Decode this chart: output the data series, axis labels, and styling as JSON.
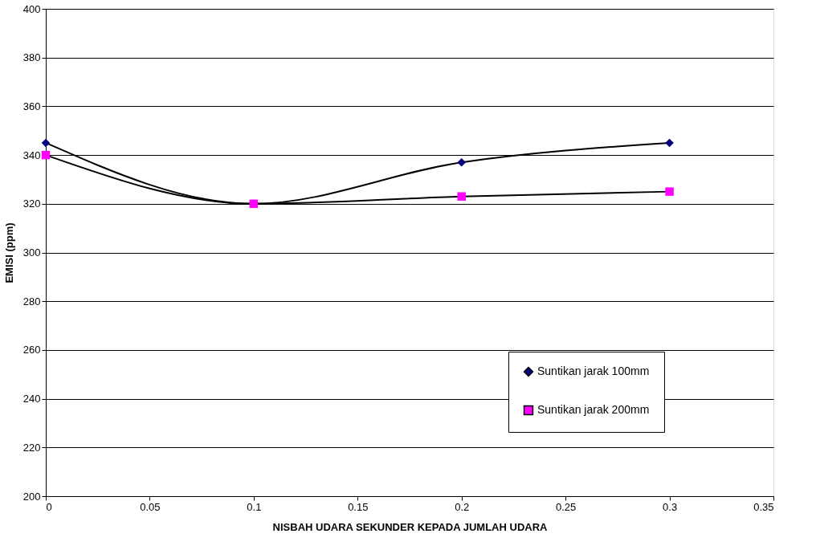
{
  "chart_data": {
    "type": "line",
    "xlabel": "NISBAH UDARA SEKUNDER KEPADA JUMLAH UDARA",
    "ylabel": "EMISI (ppm)",
    "x": [
      0,
      0.1,
      0.2,
      0.3
    ],
    "series": [
      {
        "name": "Suntikan jarak 100mm",
        "color": "#000080",
        "marker": "diamond",
        "values": [
          345,
          320,
          337,
          345
        ]
      },
      {
        "name": "Suntikan jarak 200mm",
        "color": "#ff00ff",
        "marker": "square",
        "values": [
          340,
          320,
          323,
          325
        ]
      }
    ],
    "xlim": [
      0,
      0.35
    ],
    "xticks": [
      0,
      0.05,
      0.1,
      0.15,
      0.2,
      0.25,
      0.3,
      0.35
    ],
    "ylim": [
      200,
      400
    ],
    "yticks": [
      200,
      220,
      240,
      260,
      280,
      300,
      320,
      340,
      360,
      380,
      400
    ],
    "grid": "y",
    "legend": "bottom right"
  }
}
